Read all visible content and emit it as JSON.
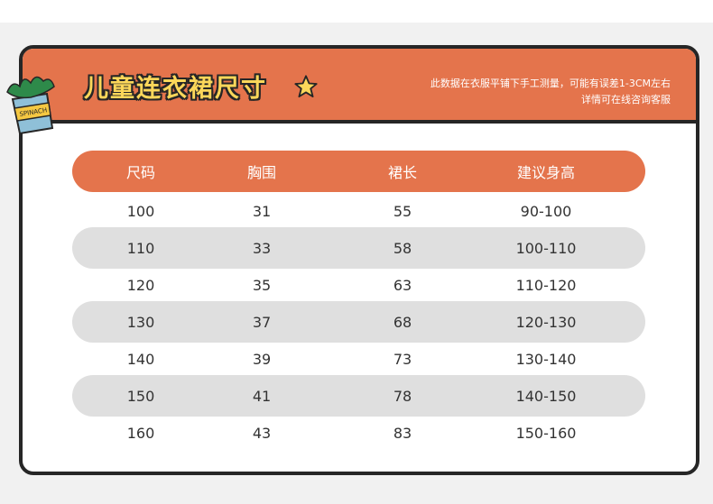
{
  "title": "儿童连衣裙尺寸",
  "note_line1": "此数据在衣服平铺下手工测量，可能有误差1-3CM左右",
  "note_line2": "详情可在线咨询客服",
  "logo_text": "SPINACH",
  "headers": [
    "尺码",
    "胸围",
    "裙长",
    "建议身高"
  ],
  "rows": [
    [
      "100",
      "31",
      "55",
      "90-100"
    ],
    [
      "110",
      "33",
      "58",
      "100-110"
    ],
    [
      "120",
      "35",
      "63",
      "110-120"
    ],
    [
      "130",
      "37",
      "68",
      "120-130"
    ],
    [
      "140",
      "39",
      "73",
      "130-140"
    ],
    [
      "150",
      "41",
      "78",
      "140-150"
    ],
    [
      "160",
      "43",
      "83",
      "150-160"
    ]
  ],
  "colors": {
    "accent": "#e4744c",
    "title": "#fbd75a",
    "stripe": "#dfdfdf",
    "border": "#262626"
  }
}
